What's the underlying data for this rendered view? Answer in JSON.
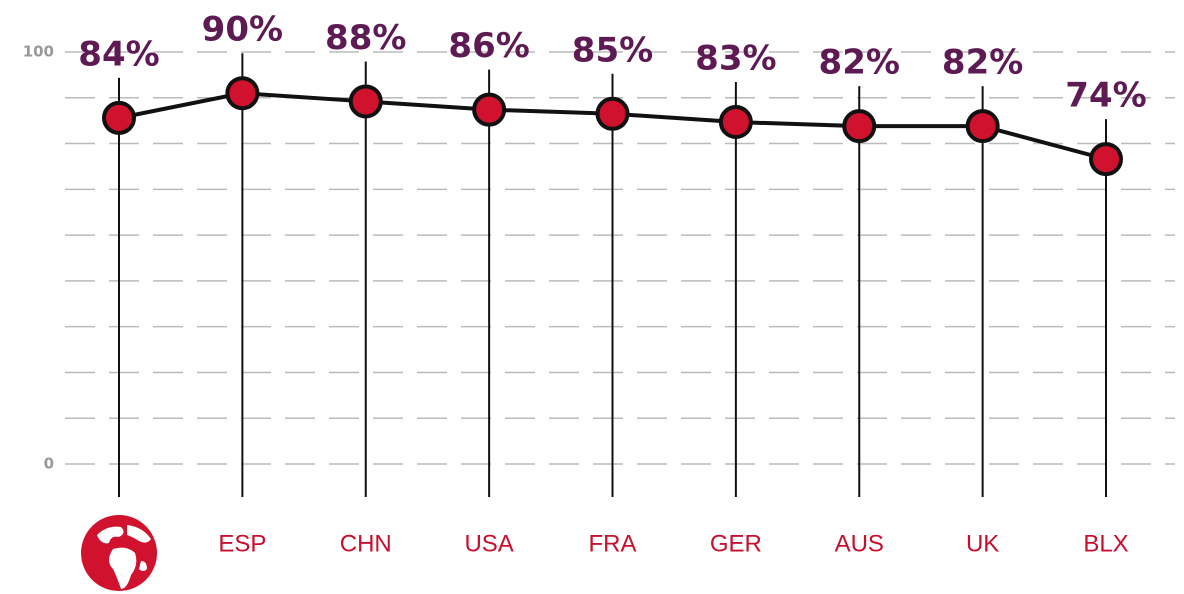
{
  "chart_data": {
    "type": "line",
    "categories": [
      null,
      "ESP",
      "CHN",
      "USA",
      "FRA",
      "GER",
      "AUS",
      "UK",
      "BLX"
    ],
    "values": [
      84,
      90,
      88,
      86,
      85,
      83,
      82,
      82,
      74
    ],
    "value_labels": [
      "84%",
      "90%",
      "88%",
      "86%",
      "85%",
      "83%",
      "82%",
      "82%",
      "74%"
    ],
    "color": "#d0122f",
    "ylim": [
      0,
      100
    ],
    "yticks": [
      0,
      100
    ],
    "grid": true,
    "grid_divisions": 9
  }
}
